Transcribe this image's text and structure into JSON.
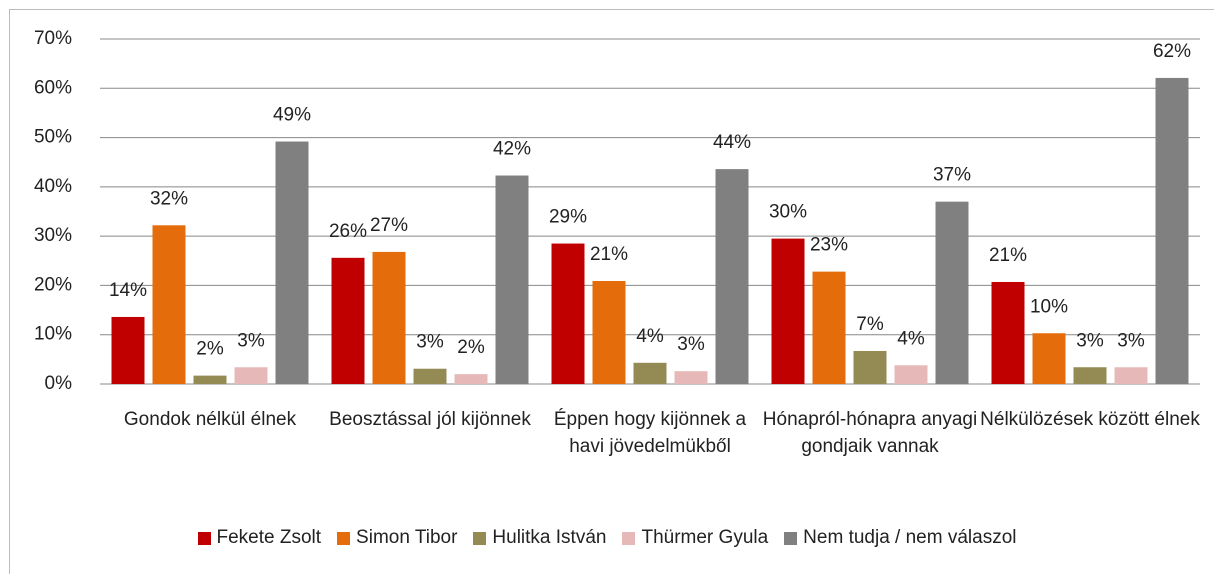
{
  "chart_data": {
    "type": "bar",
    "categories": [
      "Gondok nélkül élnek",
      "Beosztással jól kijönnek",
      "Éppen hogy kijönnek a havi jövedelmükből",
      "Hónapról-hónapra anyagi gondjaik vannak",
      "Nélkülözések között élnek"
    ],
    "series": [
      {
        "name": "Fekete Zsolt",
        "color": "#c00000",
        "values": [
          13.6,
          25.6,
          28.5,
          29.5,
          20.7
        ],
        "value_labels": [
          "14%",
          "26%",
          "29%",
          "30%",
          "21%"
        ]
      },
      {
        "name": "Simon Tibor",
        "color": "#e46c0a",
        "values": [
          32.2,
          26.8,
          20.9,
          22.8,
          10.3
        ],
        "value_labels": [
          "32%",
          "27%",
          "21%",
          "23%",
          "10%"
        ]
      },
      {
        "name": "Hulitka István",
        "color": "#948a54",
        "values": [
          1.7,
          3.1,
          4.3,
          6.7,
          3.4
        ],
        "value_labels": [
          "2%",
          "3%",
          "4%",
          "7%",
          "3%"
        ]
      },
      {
        "name": "Thürmer Gyula",
        "color": "#e6b9b8",
        "values": [
          3.4,
          2.0,
          2.6,
          3.8,
          3.4
        ],
        "value_labels": [
          "3%",
          "2%",
          "3%",
          "4%",
          "3%"
        ]
      },
      {
        "name": "Nem tudja / nem válaszol",
        "color": "#808080",
        "values": [
          49.2,
          42.3,
          43.6,
          37.0,
          62.1
        ],
        "value_labels": [
          "49%",
          "42%",
          "44%",
          "37%",
          "62%"
        ]
      }
    ],
    "ylim": [
      0,
      70
    ],
    "yticks": [
      {
        "value": 0,
        "label": "0%"
      },
      {
        "value": 10,
        "label": "10%"
      },
      {
        "value": 20,
        "label": "20%"
      },
      {
        "value": 30,
        "label": "30%"
      },
      {
        "value": 40,
        "label": "40%"
      },
      {
        "value": 50,
        "label": "50%"
      },
      {
        "value": 60,
        "label": "60%"
      },
      {
        "value": 70,
        "label": "70%"
      }
    ],
    "grid": true,
    "legend": "bottom"
  }
}
